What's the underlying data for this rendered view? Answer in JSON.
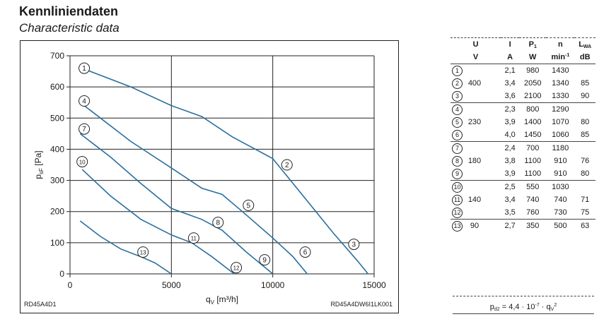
{
  "header": {
    "title": "Kennliniendaten",
    "subtitle": "Characteristic data"
  },
  "chart_codes": {
    "left": "RD45A4D1",
    "right": "RD45A4DW6I1LK001"
  },
  "chart_data": {
    "type": "line",
    "xlabel": {
      "main": "q",
      "sub": "V",
      "unit": "[m³/h]"
    },
    "ylabel": {
      "main": "p",
      "sub": "sF",
      "unit": "[Pa]"
    },
    "xlim": [
      0,
      15000
    ],
    "ylim": [
      0,
      700
    ],
    "xticks": [
      0,
      5000,
      10000,
      15000
    ],
    "yticks": [
      0,
      100,
      200,
      300,
      400,
      500,
      600,
      700
    ],
    "grid": true,
    "series": [
      {
        "id": "1-3",
        "points": [
          [
            800,
            655
          ],
          [
            3000,
            600
          ],
          [
            5000,
            540
          ],
          [
            6500,
            505
          ],
          [
            8000,
            440
          ],
          [
            10000,
            370
          ],
          [
            11500,
            250
          ],
          [
            13000,
            130
          ],
          [
            14200,
            40
          ],
          [
            14700,
            0
          ]
        ]
      },
      {
        "id": "4-6",
        "points": [
          [
            700,
            540
          ],
          [
            3000,
            425
          ],
          [
            5000,
            340
          ],
          [
            6500,
            275
          ],
          [
            7500,
            255
          ],
          [
            8500,
            200
          ],
          [
            10000,
            115
          ],
          [
            11000,
            55
          ],
          [
            11700,
            0
          ]
        ]
      },
      {
        "id": "7-9",
        "points": [
          [
            500,
            450
          ],
          [
            2000,
            375
          ],
          [
            3500,
            290
          ],
          [
            5000,
            210
          ],
          [
            6500,
            175
          ],
          [
            7500,
            140
          ],
          [
            8700,
            70
          ],
          [
            10000,
            0
          ]
        ]
      },
      {
        "id": "10-12",
        "points": [
          [
            600,
            335
          ],
          [
            2000,
            250
          ],
          [
            3500,
            175
          ],
          [
            5000,
            125
          ],
          [
            6000,
            100
          ],
          [
            7000,
            55
          ],
          [
            8100,
            0
          ]
        ]
      },
      {
        "id": "13",
        "points": [
          [
            500,
            170
          ],
          [
            1500,
            120
          ],
          [
            2500,
            80
          ],
          [
            3500,
            55
          ],
          [
            4200,
            35
          ],
          [
            5000,
            0
          ]
        ]
      }
    ],
    "markers": [
      {
        "label": "1",
        "x": 700,
        "y": 660
      },
      {
        "label": "2",
        "x": 10700,
        "y": 350
      },
      {
        "label": "3",
        "x": 14000,
        "y": 95
      },
      {
        "label": "4",
        "x": 700,
        "y": 555
      },
      {
        "label": "5",
        "x": 8800,
        "y": 220
      },
      {
        "label": "6",
        "x": 11600,
        "y": 70
      },
      {
        "label": "7",
        "x": 700,
        "y": 465
      },
      {
        "label": "8",
        "x": 7300,
        "y": 165
      },
      {
        "label": "9",
        "x": 9600,
        "y": 45
      },
      {
        "label": "10",
        "x": 600,
        "y": 360
      },
      {
        "label": "11",
        "x": 6100,
        "y": 115
      },
      {
        "label": "12",
        "x": 8200,
        "y": 20
      },
      {
        "label": "13",
        "x": 3600,
        "y": 70
      }
    ]
  },
  "table": {
    "headers": [
      {
        "symbol": "U",
        "sub": "",
        "unit": "V",
        "unit_sup": ""
      },
      {
        "symbol": "",
        "sub": "",
        "unit": "",
        "unit_sup": ""
      },
      {
        "symbol": "I",
        "sub": "",
        "unit": "A",
        "unit_sup": ""
      },
      {
        "symbol": "P",
        "sub": "1",
        "unit": "W",
        "unit_sup": ""
      },
      {
        "symbol": "n",
        "sub": "",
        "unit": "min",
        "unit_sup": "-1"
      },
      {
        "symbol": "L",
        "sub": "WA",
        "unit": "dB",
        "unit_sup": ""
      }
    ],
    "rows": [
      {
        "curve": "1",
        "U": "",
        "I": "2,1",
        "P1": "980",
        "n": "1430",
        "LWA": ""
      },
      {
        "curve": "2",
        "U": "400",
        "I": "3,4",
        "P1": "2050",
        "n": "1340",
        "LWA": "85"
      },
      {
        "curve": "3",
        "U": "",
        "I": "3,6",
        "P1": "2100",
        "n": "1330",
        "LWA": "90"
      },
      {
        "curve": "4",
        "U": "",
        "I": "2,3",
        "P1": "800",
        "n": "1290",
        "LWA": ""
      },
      {
        "curve": "5",
        "U": "230",
        "I": "3,9",
        "P1": "1400",
        "n": "1070",
        "LWA": "80"
      },
      {
        "curve": "6",
        "U": "",
        "I": "4,0",
        "P1": "1450",
        "n": "1060",
        "LWA": "85"
      },
      {
        "curve": "7",
        "U": "",
        "I": "2,4",
        "P1": "700",
        "n": "1180",
        "LWA": ""
      },
      {
        "curve": "8",
        "U": "180",
        "I": "3,8",
        "P1": "1100",
        "n": "910",
        "LWA": "76"
      },
      {
        "curve": "9",
        "U": "",
        "I": "3,9",
        "P1": "1100",
        "n": "910",
        "LWA": "80"
      },
      {
        "curve": "10",
        "U": "",
        "I": "2,5",
        "P1": "550",
        "n": "1030",
        "LWA": ""
      },
      {
        "curve": "11",
        "U": "140",
        "I": "3,4",
        "P1": "740",
        "n": "740",
        "LWA": "71"
      },
      {
        "curve": "12",
        "U": "",
        "I": "3,5",
        "P1": "760",
        "n": "730",
        "LWA": "75"
      },
      {
        "curve": "13",
        "U": "90",
        "I": "2,7",
        "P1": "350",
        "n": "500",
        "LWA": "63"
      }
    ]
  },
  "formula": {
    "p": "p",
    "p_sub": "d2",
    "eq": " = 4,4 · 10",
    "exp": "-7",
    "mid": " · q",
    "q_sub": "V",
    "q_sup": "2"
  },
  "colors": {
    "curve": "#2a6f9e",
    "grid": "#222222",
    "text": "#1a1a1a"
  }
}
